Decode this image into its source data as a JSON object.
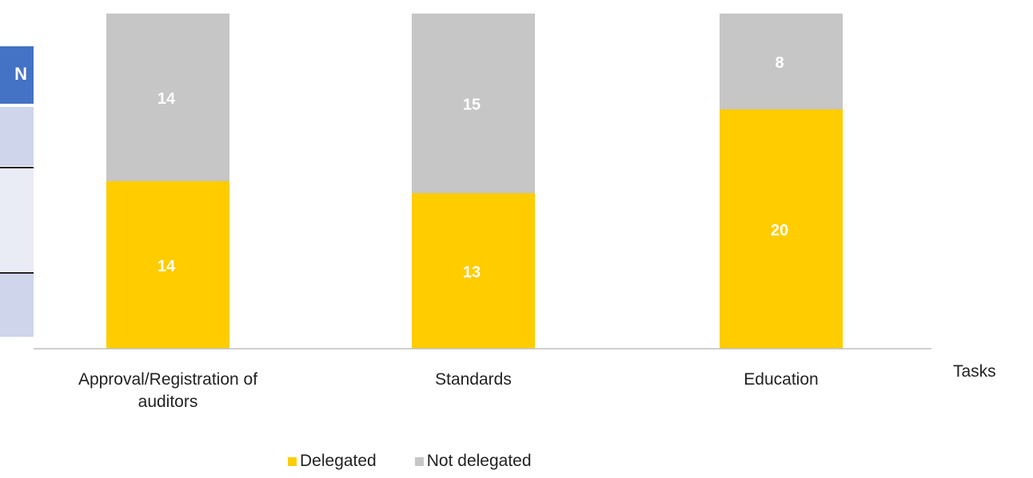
{
  "table_fragment": {
    "header_text": "N"
  },
  "colors": {
    "delegated": "#ffcc00",
    "not_delegated": "#c6c6c6",
    "table_header": "#4472c4",
    "table_row_dark": "#cfd5ea",
    "table_row_light": "#e9ebf5",
    "label_text": "#ffffff"
  },
  "chart_data": {
    "type": "bar",
    "stacked": true,
    "categories": [
      "Approval/Registration of auditors",
      "Standards",
      "Education"
    ],
    "category_label_lines": [
      [
        "Approval/Registration of",
        "auditors"
      ],
      [
        "Standards"
      ],
      [
        "Education"
      ]
    ],
    "series": [
      {
        "name": "Delegated",
        "values": [
          14,
          13,
          20
        ],
        "color": "#ffcc00"
      },
      {
        "name": "Not delegated",
        "values": [
          14,
          15,
          8
        ],
        "color": "#c6c6c6"
      }
    ],
    "xlabel": "Tasks",
    "ylabel": "",
    "title": "",
    "grid": false,
    "legend_position": "bottom"
  }
}
